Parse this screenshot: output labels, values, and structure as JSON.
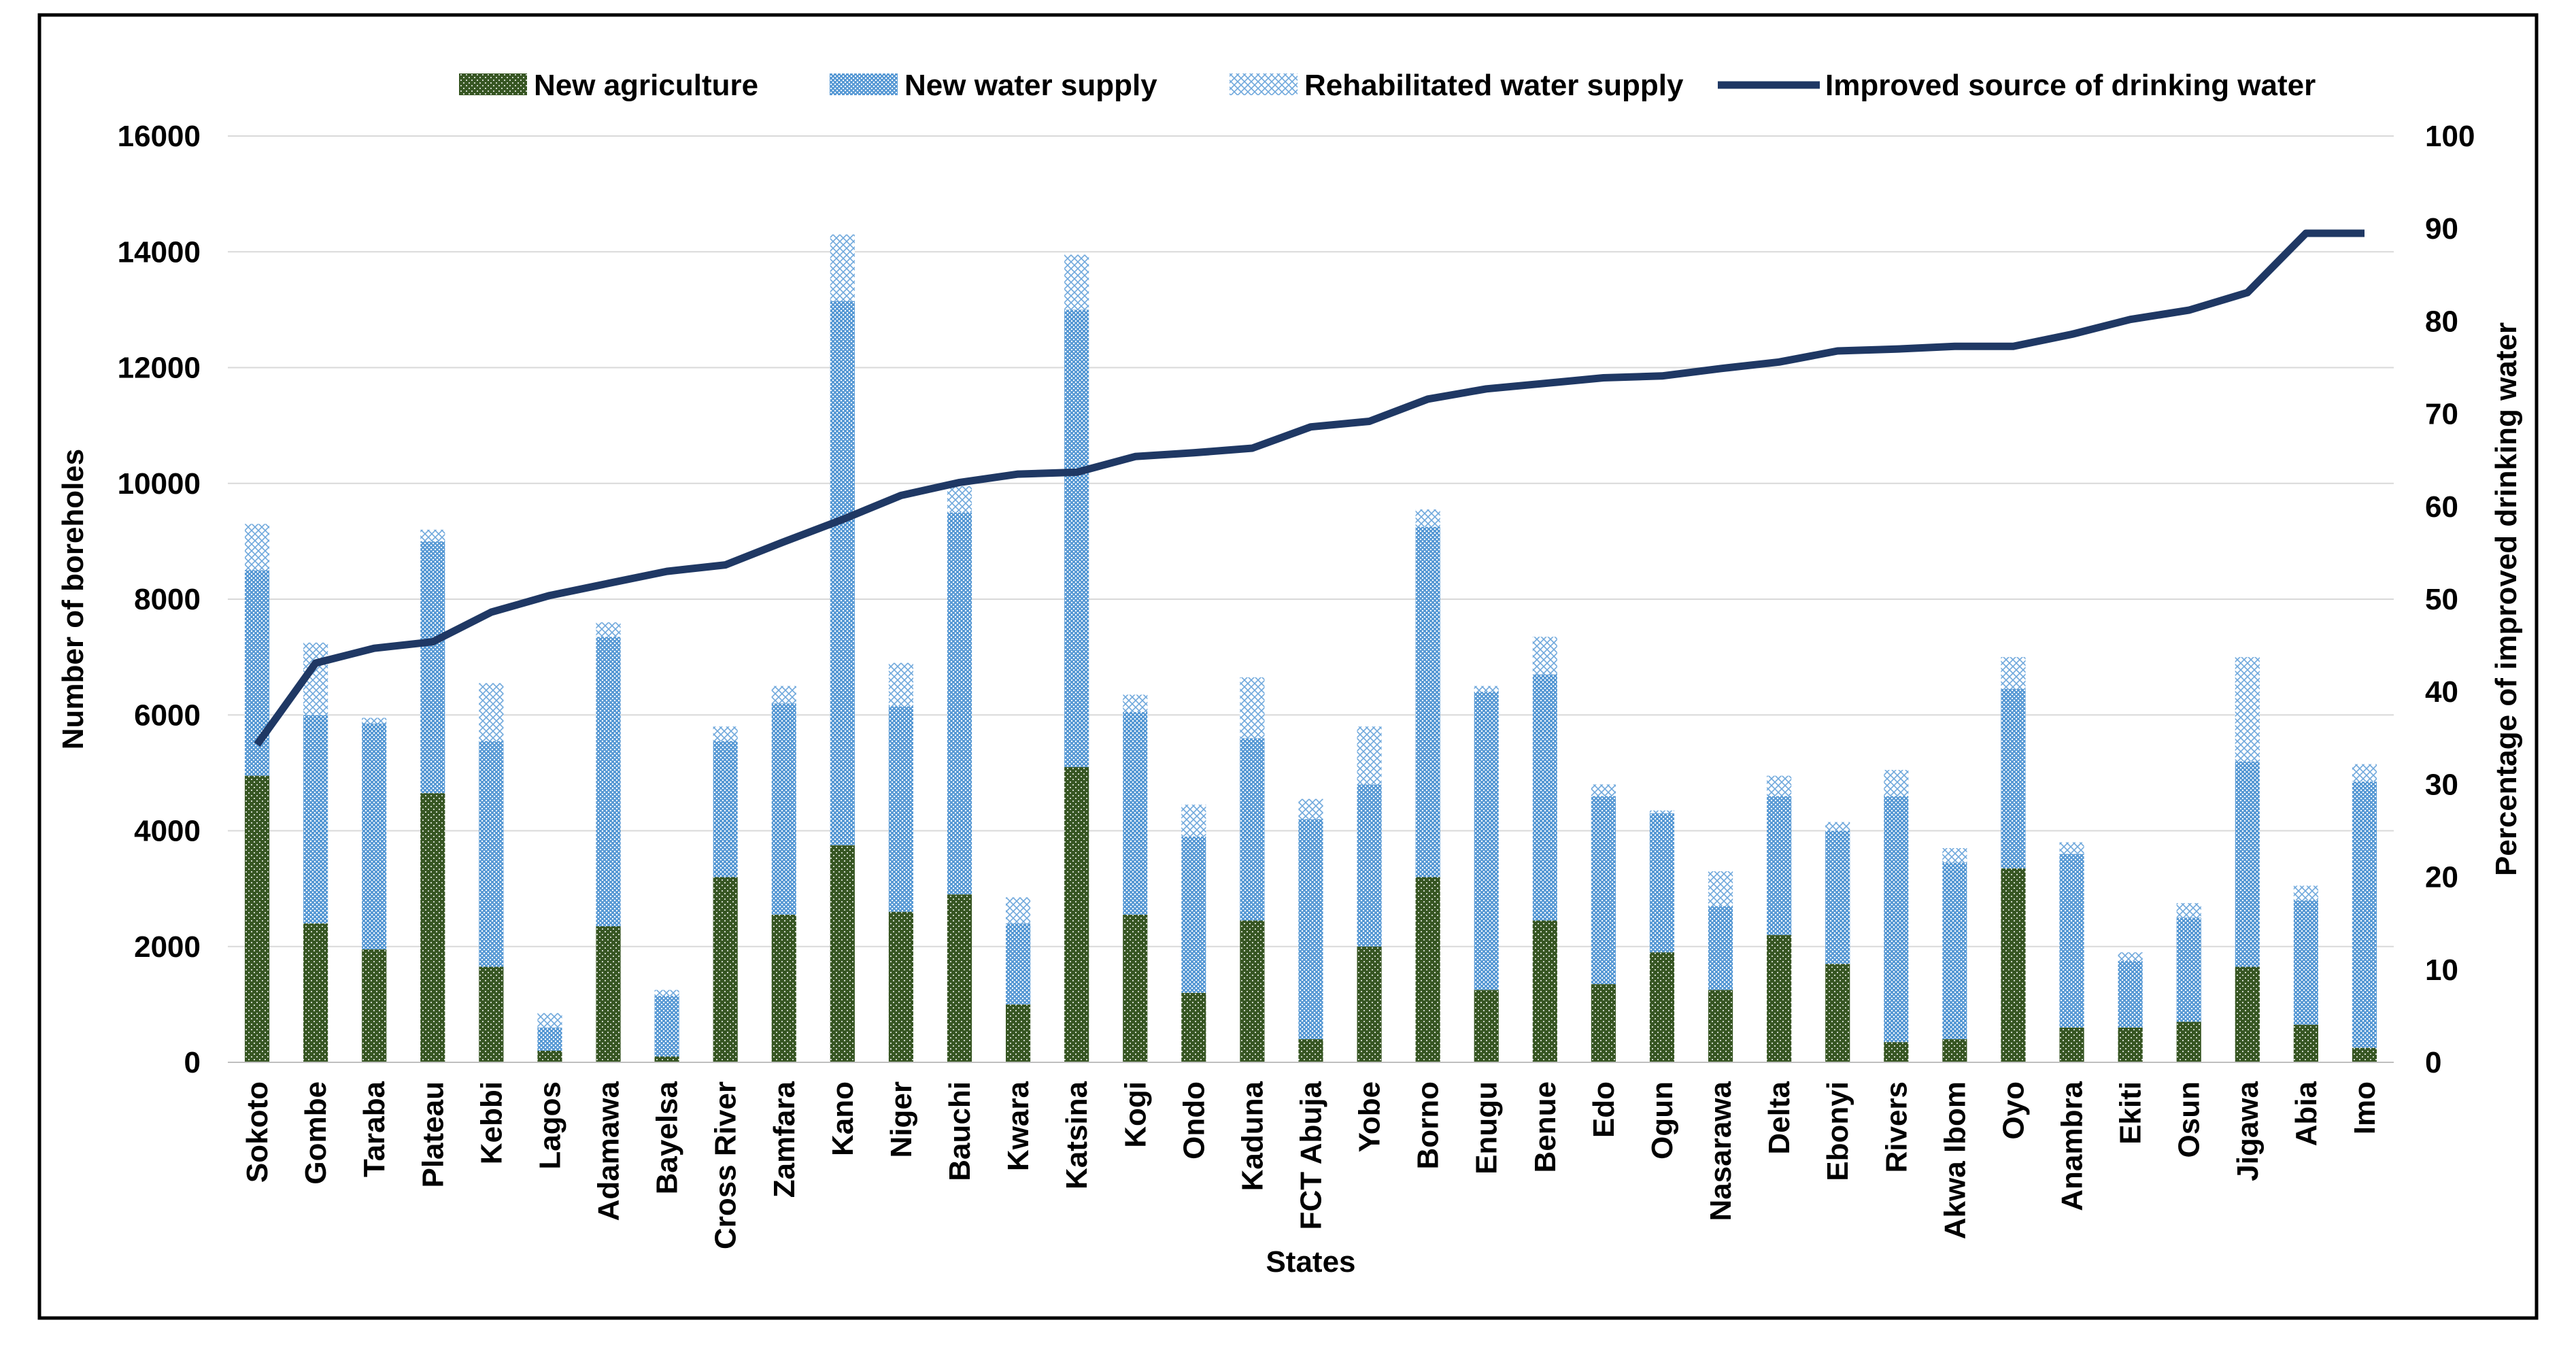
{
  "chart_data": {
    "type": "bar",
    "stacked": true,
    "xlabel": "States",
    "ylabel": "Number of boreholes",
    "y2label": "Percentage of improved drinking water",
    "ylim": [
      0,
      16000
    ],
    "y2lim": [
      0,
      100
    ],
    "yticks": [
      0,
      2000,
      4000,
      6000,
      8000,
      10000,
      12000,
      14000,
      16000
    ],
    "y2ticks": [
      0,
      10,
      20,
      30,
      40,
      50,
      60,
      70,
      80,
      90,
      100
    ],
    "grid": true,
    "legend_position": "top",
    "categories": [
      "Sokoto",
      "Gombe",
      "Taraba",
      "Plateau",
      "Kebbi",
      "Lagos",
      "Adamawa",
      "Bayelsa",
      "Cross River",
      "Zamfara",
      "Kano",
      "Niger",
      "Bauchi",
      "Kwara",
      "Katsina",
      "Kogi",
      "Ondo",
      "Kaduna",
      "FCT Abuja",
      "Yobe",
      "Borno",
      "Enugu",
      "Benue",
      "Edo",
      "Ogun",
      "Nasarawa",
      "Delta",
      "Ebonyi",
      "Rivers",
      "Akwa Ibom",
      "Oyo",
      "Anambra",
      "Ekiti",
      "Osun",
      "Jigawa",
      "Abia",
      "Imo"
    ],
    "series": [
      {
        "name": "New agriculture",
        "type": "bar",
        "axis": "left",
        "color": "#375623",
        "values": [
          4950,
          2400,
          1950,
          4650,
          1650,
          200,
          2350,
          100,
          3200,
          2550,
          3750,
          2600,
          2900,
          1000,
          5100,
          2550,
          1200,
          2450,
          400,
          2000,
          3200,
          1250,
          2450,
          1350,
          1900,
          1250,
          2200,
          1700,
          350,
          400,
          3350,
          600,
          600,
          700,
          1650,
          650,
          250
        ]
      },
      {
        "name": "New water supply",
        "type": "bar",
        "axis": "left",
        "color": "#5B9BD5",
        "values": [
          3550,
          3600,
          3900,
          4350,
          3900,
          400,
          5000,
          1050,
          2350,
          3650,
          9400,
          3550,
          6600,
          1400,
          7900,
          3500,
          2700,
          3150,
          3800,
          2800,
          6050,
          5150,
          4250,
          3250,
          2400,
          1450,
          2400,
          2300,
          4250,
          3050,
          3100,
          3000,
          1150,
          1800,
          3550,
          2150,
          4600
        ]
      },
      {
        "name": "Rehabilitated water supply",
        "type": "bar",
        "axis": "left",
        "color": "#9DC3E6",
        "values": [
          800,
          1250,
          100,
          200,
          1000,
          250,
          250,
          100,
          250,
          300,
          1150,
          750,
          450,
          450,
          950,
          300,
          550,
          1050,
          350,
          1000,
          300,
          100,
          650,
          200,
          50,
          600,
          350,
          150,
          450,
          250,
          550,
          200,
          150,
          250,
          1800,
          250,
          300
        ]
      },
      {
        "name": "Improved source of drinking water",
        "type": "line",
        "axis": "right",
        "color": "#1F3864",
        "values": [
          34.3,
          43.1,
          44.7,
          45.4,
          48.6,
          50.4,
          51.7,
          53.0,
          53.7,
          56.2,
          58.6,
          61.2,
          62.6,
          63.5,
          63.7,
          65.4,
          65.8,
          66.3,
          68.6,
          69.2,
          71.6,
          72.7,
          73.3,
          73.9,
          74.1,
          74.9,
          75.6,
          76.8,
          77.0,
          77.3,
          77.3,
          78.6,
          80.2,
          81.2,
          83.1,
          89.5,
          89.5
        ]
      }
    ]
  }
}
